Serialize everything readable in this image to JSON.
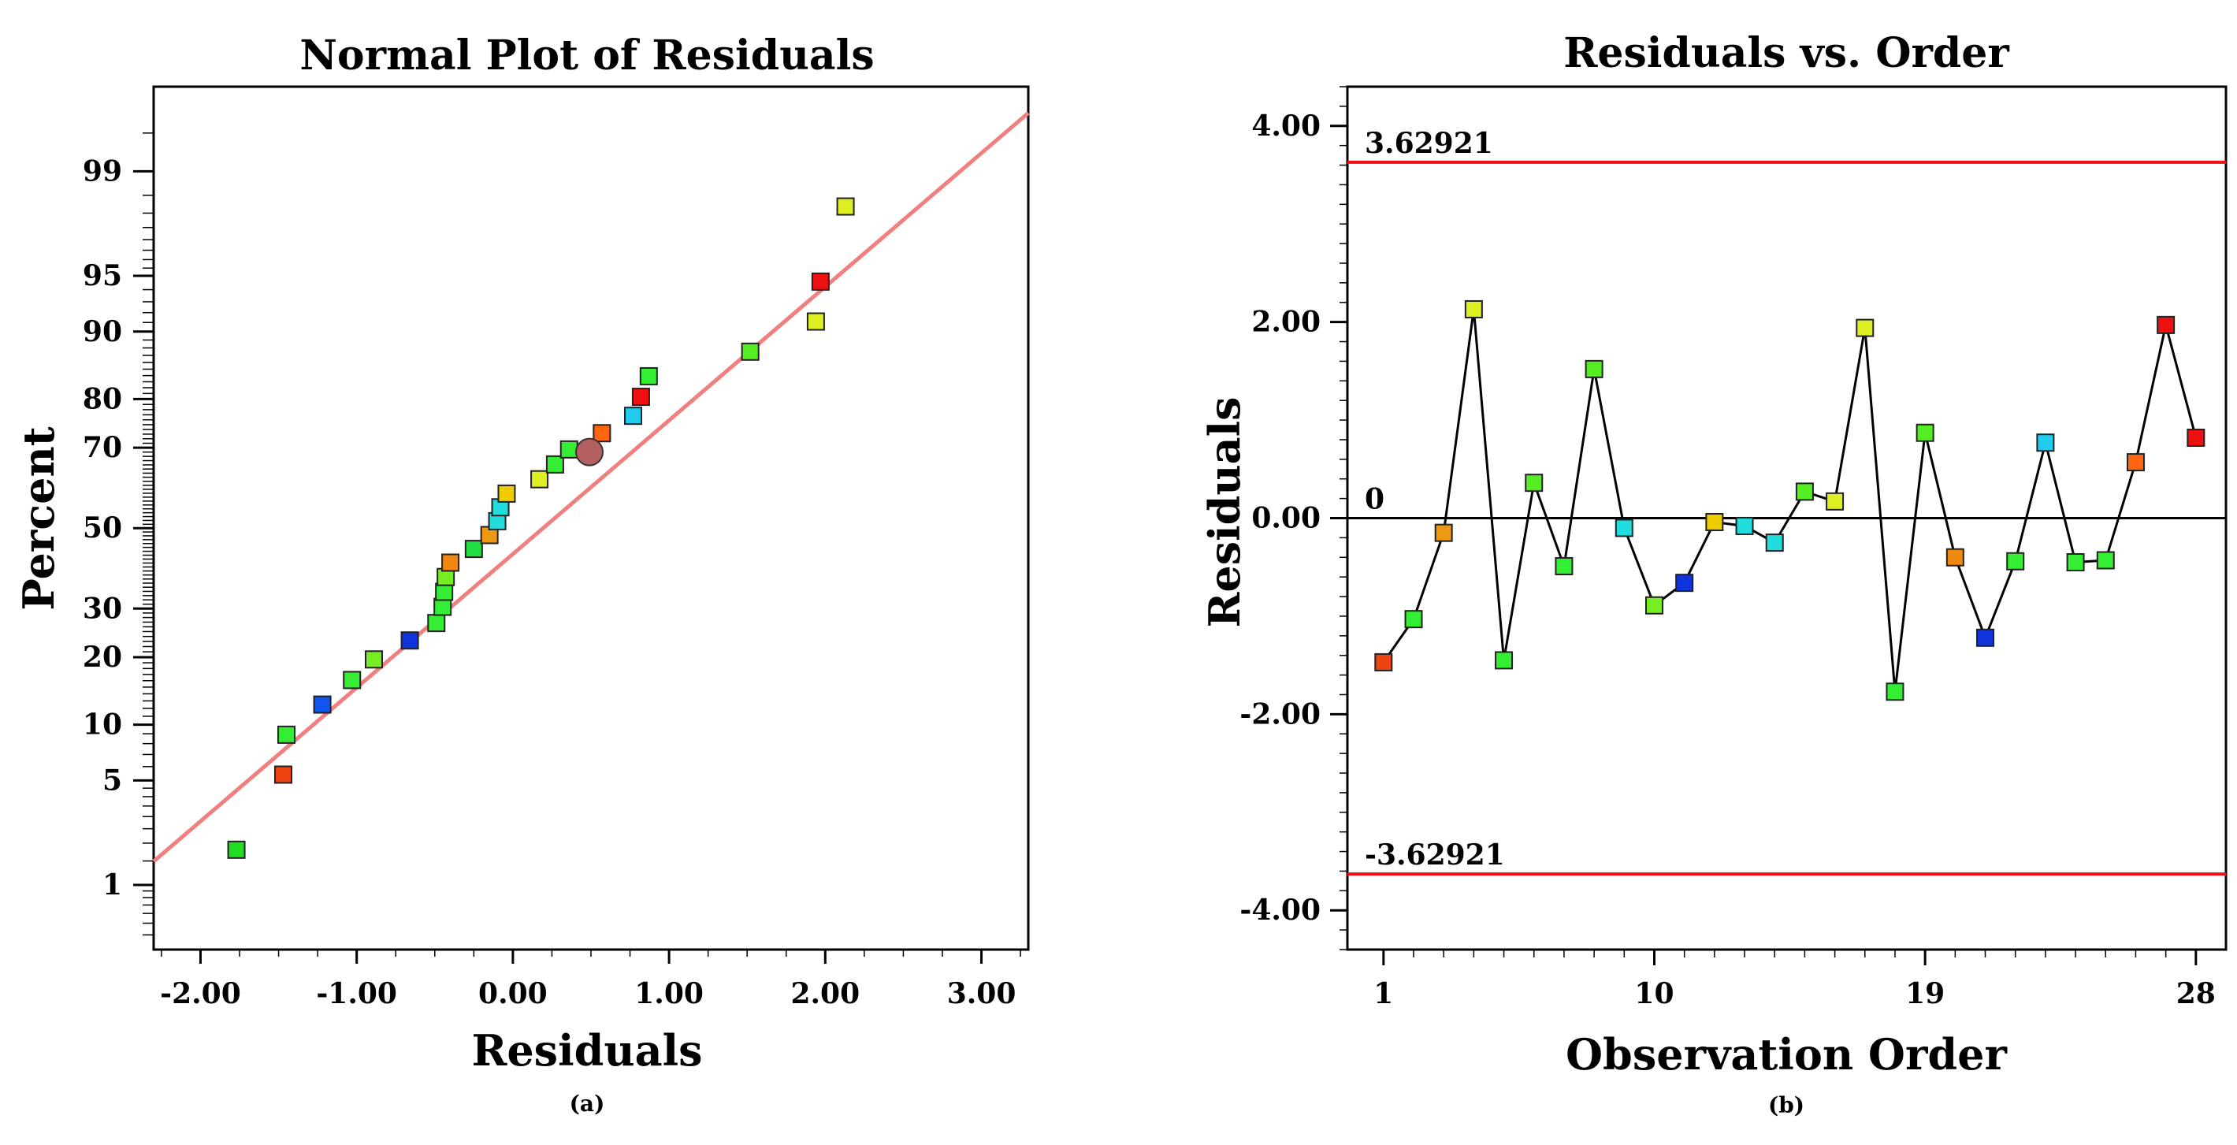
{
  "chart_data": [
    {
      "type": "scatter",
      "title": "Normal Plot of Residuals",
      "xlabel": "Residuals",
      "ylabel": "Percent",
      "caption": "(a)",
      "xlim": [
        -2.3,
        3.3
      ],
      "xticks": [
        -2.0,
        -1.0,
        0.0,
        1.0,
        2.0,
        3.0
      ],
      "xtick_labels": [
        "-2.00",
        "-1.00",
        "0.00",
        "1.00",
        "2.00",
        "3.00"
      ],
      "ylim_percent": [
        0.3,
        99.8
      ],
      "yticks": [
        1,
        5,
        10,
        20,
        30,
        50,
        70,
        80,
        90,
        95,
        99
      ],
      "ytick_labels": [
        "1",
        "5",
        "10",
        "20",
        "30",
        "50",
        "70",
        "80",
        "90",
        "95",
        "99"
      ],
      "reference_line": {
        "from": [
          -2.3,
          1.49
        ],
        "to": [
          3.3,
          99.66
        ],
        "color": "#f08080"
      },
      "highlight_point": {
        "x": 0.49,
        "y": 69.0,
        "color": "#b56060"
      },
      "points": [
        {
          "x": -1.77,
          "y": 1.8,
          "color": "#22dd22"
        },
        {
          "x": -1.47,
          "y": 5.4,
          "color": "#ee4411"
        },
        {
          "x": -1.45,
          "y": 8.9,
          "color": "#33ee33"
        },
        {
          "x": -1.22,
          "y": 12.5,
          "color": "#1155ee"
        },
        {
          "x": -1.03,
          "y": 16.1,
          "color": "#33ee33"
        },
        {
          "x": -0.89,
          "y": 19.6,
          "color": "#77ee22"
        },
        {
          "x": -0.66,
          "y": 23.2,
          "color": "#1133dd"
        },
        {
          "x": -0.49,
          "y": 26.8,
          "color": "#33ee33"
        },
        {
          "x": -0.45,
          "y": 30.4,
          "color": "#33ee33"
        },
        {
          "x": -0.44,
          "y": 33.9,
          "color": "#33ee33"
        },
        {
          "x": -0.43,
          "y": 37.5,
          "color": "#77ee22"
        },
        {
          "x": -0.4,
          "y": 41.1,
          "color": "#ee8811"
        },
        {
          "x": -0.25,
          "y": 44.6,
          "color": "#22dd44"
        },
        {
          "x": -0.15,
          "y": 48.2,
          "color": "#ee9911"
        },
        {
          "x": -0.1,
          "y": 51.8,
          "color": "#22dddd"
        },
        {
          "x": -0.08,
          "y": 55.4,
          "color": "#22dddd"
        },
        {
          "x": -0.04,
          "y": 58.9,
          "color": "#eecc00"
        },
        {
          "x": 0.17,
          "y": 62.5,
          "color": "#ddee22"
        },
        {
          "x": 0.27,
          "y": 66.1,
          "color": "#33ee33"
        },
        {
          "x": 0.36,
          "y": 69.6,
          "color": "#33ee33"
        },
        {
          "x": 0.57,
          "y": 73.2,
          "color": "#ff6611"
        },
        {
          "x": 0.77,
          "y": 76.8,
          "color": "#22ccee"
        },
        {
          "x": 0.82,
          "y": 80.4,
          "color": "#ee1111"
        },
        {
          "x": 0.87,
          "y": 83.9,
          "color": "#33ee33"
        },
        {
          "x": 1.52,
          "y": 87.5,
          "color": "#55ee22"
        },
        {
          "x": 1.94,
          "y": 91.1,
          "color": "#ddee22"
        },
        {
          "x": 1.97,
          "y": 94.6,
          "color": "#ee1111"
        },
        {
          "x": 2.13,
          "y": 98.2,
          "color": "#ddee22"
        }
      ]
    },
    {
      "type": "line",
      "title": "Residuals vs. Order",
      "xlabel": "Observation Order",
      "ylabel": "Residuals",
      "caption": "(b)",
      "xlim": [
        -0.2,
        29.0
      ],
      "xticks": [
        1,
        10,
        19,
        28
      ],
      "xtick_labels": [
        "1",
        "10",
        "19",
        "28"
      ],
      "ylim": [
        -4.4,
        4.4
      ],
      "yticks": [
        -4.0,
        -2.0,
        0.0,
        2.0,
        4.0
      ],
      "ytick_labels": [
        "-4.00",
        "-2.00",
        "0.00",
        "2.00",
        "4.00"
      ],
      "control_limits": [
        {
          "value": 3.62921,
          "label": "3.62921",
          "color": "#ee1111"
        },
        {
          "value": -3.62921,
          "label": "-3.62921",
          "color": "#ee1111"
        }
      ],
      "zero_line": {
        "value": 0,
        "label": "0"
      },
      "x": [
        1,
        2,
        3,
        4,
        5,
        6,
        7,
        8,
        9,
        10,
        11,
        12,
        13,
        14,
        15,
        16,
        17,
        18,
        19,
        20,
        21,
        22,
        23,
        24,
        25,
        26,
        27,
        28
      ],
      "values": [
        -1.47,
        -1.03,
        -0.15,
        2.13,
        -1.45,
        0.36,
        -0.49,
        1.52,
        -0.1,
        -0.89,
        -0.66,
        -0.04,
        -0.08,
        -0.25,
        0.27,
        0.17,
        1.94,
        -1.77,
        0.87,
        -0.4,
        -1.22,
        -0.44,
        0.77,
        -0.45,
        -0.43,
        0.57,
        1.97,
        0.82
      ],
      "colors": [
        "#ee4411",
        "#33ee33",
        "#ee9911",
        "#ddee22",
        "#33ee33",
        "#55ee22",
        "#33ee33",
        "#55ee22",
        "#22dddd",
        "#77ee22",
        "#1133dd",
        "#eecc00",
        "#22dddd",
        "#22dddd",
        "#55ee22",
        "#ddee22",
        "#ddee22",
        "#33ee33",
        "#55ee22",
        "#ee8811",
        "#1133dd",
        "#33ee33",
        "#22ccee",
        "#33ee33",
        "#33ee33",
        "#ff6611",
        "#ee1111",
        "#ee1111"
      ]
    }
  ]
}
